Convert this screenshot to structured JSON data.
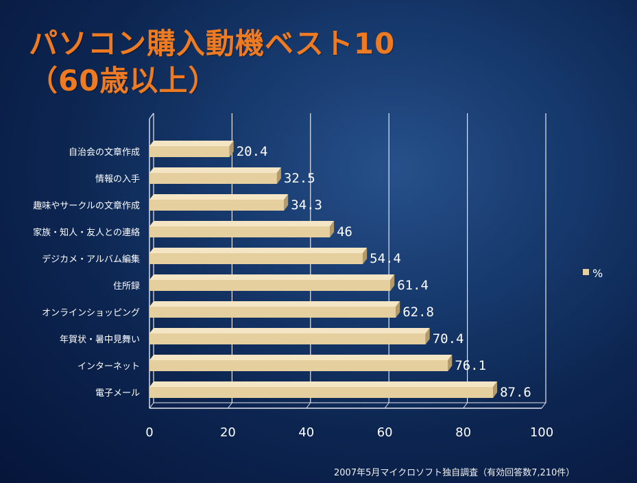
{
  "title": {
    "line1": "パソコン購入動機ベスト10",
    "line2": "（60歳以上）"
  },
  "footnote": "2007年5月マイクロソフト独自調査（有効回答数7,210件）",
  "colors": {
    "title": "#ee7a22",
    "bar_face": "#e6cf9f",
    "bar_top": "#f4e6c4",
    "bar_end": "#b59b6b",
    "text": "#ffffff",
    "grid": "#e8e8f0"
  },
  "chart_data": {
    "type": "bar",
    "orientation": "horizontal",
    "categories": [
      "電子メール",
      "インターネット",
      "年賀状・暑中見舞い",
      "オンラインショッピング",
      "住所録",
      "デジカメ・アルバム編集",
      "家族・知人・友人との連絡",
      "趣味やサークルの文章作成",
      "情報の入手",
      "自治会の文章作成"
    ],
    "series": [
      {
        "name": "%",
        "values": [
          87.6,
          76.1,
          70.4,
          62.8,
          61.4,
          54.4,
          46,
          34.3,
          32.5,
          20.4
        ],
        "labels": [
          "87.6",
          "76.1",
          "70.4",
          "62.8",
          "61.4",
          "54.4",
          "46",
          "34.3",
          "32.5",
          "20.4"
        ]
      }
    ],
    "xlim": [
      0,
      100
    ],
    "xticks": [
      "0",
      "20",
      "40",
      "60",
      "80",
      "100"
    ],
    "grid": true,
    "legend": "right"
  }
}
